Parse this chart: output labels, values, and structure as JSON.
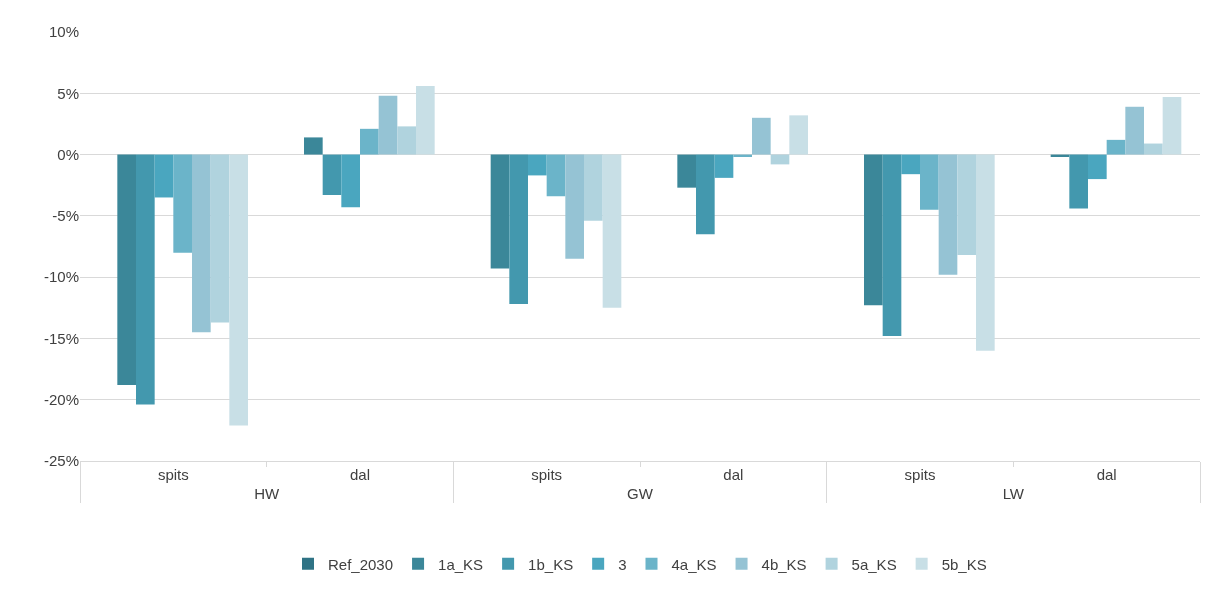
{
  "chart_data": {
    "type": "bar",
    "categories": [
      "spits",
      "dal",
      "spits",
      "dal",
      "spits",
      "dal"
    ],
    "annotations": [
      "HW",
      "GW",
      "LW"
    ],
    "series": [
      {
        "name": "Ref_2030",
        "color": "#2f7385",
        "values": [
          0,
          0,
          0,
          0,
          0,
          0
        ]
      },
      {
        "name": "1a_KS",
        "color": "#3b8799",
        "values": [
          -18.8,
          1.4,
          -9.3,
          -2.7,
          -12.3,
          -0.2
        ]
      },
      {
        "name": "1b_KS",
        "color": "#4398ae",
        "values": [
          -20.4,
          -3.3,
          -12.2,
          -6.5,
          -14.8,
          -4.4
        ]
      },
      {
        "name": "3",
        "color": "#4aa6bf",
        "values": [
          -3.5,
          -4.3,
          -1.7,
          -1.9,
          -1.6,
          -2.0
        ]
      },
      {
        "name": "4a_KS",
        "color": "#6bb4c9",
        "values": [
          -8.0,
          2.1,
          -3.4,
          -0.2,
          -4.5,
          1.2
        ]
      },
      {
        "name": "4b_KS",
        "color": "#95c3d4",
        "values": [
          -14.5,
          4.8,
          -8.5,
          3.0,
          -9.8,
          3.9
        ]
      },
      {
        "name": "5a_KS",
        "color": "#b0d3de",
        "values": [
          -13.7,
          2.3,
          -5.4,
          -0.8,
          -8.2,
          0.9
        ]
      },
      {
        "name": "5b_KS",
        "color": "#c8dfe6",
        "values": [
          -22.1,
          5.6,
          -12.5,
          3.2,
          -16.0,
          4.7
        ]
      }
    ],
    "ylim": [
      -25,
      10
    ],
    "yticks": [
      {
        "value": -25,
        "label": "-25%"
      },
      {
        "value": -20,
        "label": "-20%"
      },
      {
        "value": -15,
        "label": "-15%"
      },
      {
        "value": -10,
        "label": "-10%"
      },
      {
        "value": -5,
        "label": "-5%"
      },
      {
        "value": 0,
        "label": "0%"
      },
      {
        "value": 5,
        "label": "5%"
      },
      {
        "value": 10,
        "label": "10%"
      }
    ],
    "grid": "y",
    "legend": "bottom"
  }
}
